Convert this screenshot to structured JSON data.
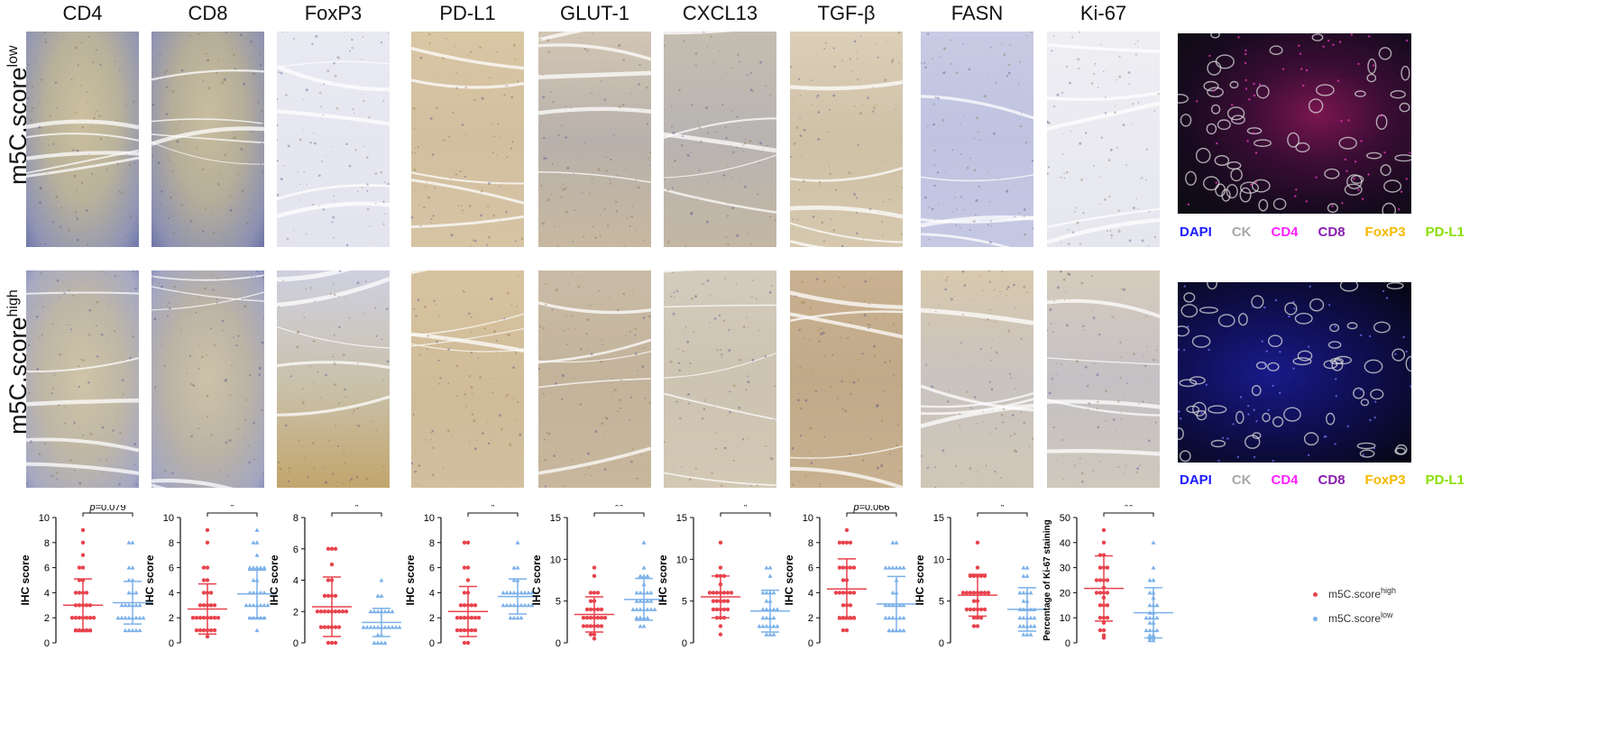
{
  "columns": [
    "CD4",
    "CD8",
    "FoxP3",
    "PD-L1",
    "GLUT-1",
    "CXCL13",
    "TGF-β",
    "FASN",
    "Ki-67"
  ],
  "rows": [
    {
      "base": "m5C.score",
      "sup": "low"
    },
    {
      "base": "m5C.score",
      "sup": "high"
    }
  ],
  "fluor_legend": [
    {
      "label": "DAPI",
      "color": "#1a1aff"
    },
    {
      "label": "CK",
      "color": "#a8a8a8"
    },
    {
      "label": "CD4",
      "color": "#ff22ff"
    },
    {
      "label": "CD8",
      "color": "#8b1fb0"
    },
    {
      "label": "FoxP3",
      "color": "#f5b800"
    },
    {
      "label": "PD-L1",
      "color": "#88e000"
    }
  ],
  "series_legend": [
    {
      "base": "m5C.score",
      "sup": "high",
      "color": "#e8434d"
    },
    {
      "base": "m5C.score",
      "sup": "low",
      "color": "#7ab0ea"
    }
  ],
  "chart_data": [
    {
      "type": "scatter",
      "marker": "CD4",
      "ylabel": "IHC score",
      "ylim": [
        0,
        10
      ],
      "yticks": [
        0,
        2,
        4,
        6,
        8,
        10
      ],
      "annotation": {
        "italic": "p",
        "rest": "=0.079"
      },
      "series": [
        {
          "name": "m5C.score high",
          "mean": 3.0,
          "sd": 2.1,
          "values": [
            9,
            8,
            7,
            6,
            6,
            5,
            5,
            4,
            4,
            4,
            4,
            3,
            3,
            3,
            3,
            3,
            2,
            2,
            2,
            2,
            2,
            2,
            2,
            1,
            1,
            1,
            1,
            1
          ]
        },
        {
          "name": "m5C.score low",
          "mean": 3.2,
          "sd": 1.7,
          "values": [
            8,
            8,
            6,
            6,
            5,
            5,
            4,
            4,
            4,
            3,
            3,
            3,
            3,
            3,
            3,
            2,
            2,
            2,
            2,
            2,
            2,
            2,
            2,
            1,
            1,
            1,
            1,
            1
          ]
        }
      ]
    },
    {
      "type": "scatter",
      "marker": "CD8",
      "ylabel": "IHC score",
      "ylim": [
        0,
        10
      ],
      "yticks": [
        0,
        2,
        4,
        6,
        8,
        10
      ],
      "annotation": {
        "italic": "",
        "rest": "*"
      },
      "series": [
        {
          "name": "m5C.score high",
          "mean": 2.7,
          "sd": 2.0,
          "values": [
            9,
            8,
            6,
            6,
            5,
            5,
            4,
            4,
            4,
            3,
            3,
            3,
            3,
            3,
            2,
            2,
            2,
            2,
            2,
            2,
            2,
            2,
            1,
            1,
            1,
            1,
            1,
            1,
            0.5
          ]
        },
        {
          "name": "m5C.score low",
          "mean": 3.9,
          "sd": 1.9,
          "values": [
            9,
            8,
            8,
            7,
            6,
            6,
            6,
            6,
            6,
            5,
            5,
            4,
            4,
            4,
            4,
            4,
            3,
            3,
            3,
            3,
            3,
            3,
            3,
            2,
            2,
            2,
            2,
            2,
            1
          ]
        }
      ]
    },
    {
      "type": "scatter",
      "marker": "FoxP3",
      "ylabel": "IHC score",
      "ylim": [
        0,
        8
      ],
      "yticks": [
        0,
        2,
        4,
        6,
        8
      ],
      "annotation": {
        "italic": "",
        "rest": "*"
      },
      "series": [
        {
          "name": "m5C.score high",
          "mean": 2.3,
          "sd": 1.9,
          "values": [
            6,
            6,
            6,
            5,
            4,
            4,
            3,
            3,
            3,
            3,
            2,
            2,
            2,
            2,
            2,
            2,
            2,
            2,
            2,
            1,
            1,
            1,
            1,
            1,
            1,
            0,
            0,
            0
          ]
        },
        {
          "name": "m5C.score low",
          "mean": 1.3,
          "sd": 0.9,
          "values": [
            4,
            3,
            3,
            2,
            2,
            2,
            2,
            2,
            2,
            2,
            1,
            1,
            1,
            1,
            1,
            1,
            1,
            1,
            1,
            1,
            1,
            0.5,
            0.5,
            0,
            0,
            0,
            0
          ]
        }
      ]
    },
    {
      "type": "scatter",
      "marker": "PD-L1",
      "ylabel": "IHC score",
      "ylim": [
        0,
        10
      ],
      "yticks": [
        0,
        2,
        4,
        6,
        8,
        10
      ],
      "annotation": {
        "italic": "",
        "rest": "*"
      },
      "series": [
        {
          "name": "m5C.score high",
          "mean": 2.5,
          "sd": 2.0,
          "values": [
            8,
            8,
            6,
            6,
            5,
            4,
            4,
            3,
            3,
            3,
            3,
            3,
            2,
            2,
            2,
            2,
            2,
            2,
            2,
            1,
            1,
            1,
            1,
            1,
            1,
            0,
            0
          ]
        },
        {
          "name": "m5C.score low",
          "mean": 3.7,
          "sd": 1.4,
          "values": [
            8,
            6,
            6,
            5,
            5,
            4,
            4,
            4,
            4,
            4,
            4,
            4,
            4,
            4,
            3,
            3,
            3,
            3,
            3,
            3,
            3,
            3,
            3,
            2,
            2,
            2,
            2
          ]
        }
      ]
    },
    {
      "type": "scatter",
      "marker": "GLUT-1",
      "ylabel": "IHC score",
      "ylim": [
        0,
        15
      ],
      "yticks": [
        0,
        5,
        10,
        15
      ],
      "annotation": {
        "italic": "",
        "rest": "**"
      },
      "series": [
        {
          "name": "m5C.score high",
          "mean": 3.4,
          "sd": 2.1,
          "values": [
            9,
            8,
            6,
            6,
            6,
            5,
            5,
            4,
            4,
            4,
            4,
            4,
            3,
            3,
            3,
            3,
            3,
            3,
            3,
            2,
            2,
            2,
            2,
            2,
            2,
            1,
            1,
            0.5
          ]
        },
        {
          "name": "m5C.score low",
          "mean": 5.2,
          "sd": 2.5,
          "values": [
            12,
            9,
            8,
            8,
            8,
            7,
            6,
            6,
            6,
            6,
            6,
            5,
            5,
            5,
            5,
            5,
            4,
            4,
            4,
            4,
            4,
            4,
            4,
            3,
            3,
            3,
            3,
            2,
            2
          ]
        }
      ]
    },
    {
      "type": "scatter",
      "marker": "CXCL13",
      "ylabel": "IHC score",
      "ylim": [
        0,
        15
      ],
      "yticks": [
        0,
        5,
        10,
        15
      ],
      "annotation": {
        "italic": "",
        "rest": "*"
      },
      "series": [
        {
          "name": "m5C.score high",
          "mean": 5.5,
          "sd": 2.5,
          "values": [
            12,
            9,
            8,
            8,
            8,
            7,
            6,
            6,
            6,
            6,
            6,
            6,
            6,
            5,
            5,
            5,
            5,
            5,
            4,
            4,
            4,
            4,
            4,
            3,
            3,
            3,
            2,
            1
          ]
        },
        {
          "name": "m5C.score low",
          "mean": 3.8,
          "sd": 2.5,
          "values": [
            9,
            9,
            8,
            6,
            6,
            6,
            6,
            5,
            5,
            4,
            4,
            4,
            4,
            4,
            3,
            3,
            3,
            3,
            2,
            2,
            2,
            2,
            2,
            2,
            1,
            1,
            1
          ]
        }
      ]
    },
    {
      "type": "scatter",
      "marker": "TGF-β",
      "ylabel": "IHC score",
      "ylim": [
        0,
        10
      ],
      "yticks": [
        0,
        2,
        4,
        6,
        8,
        10
      ],
      "annotation": {
        "italic": "p",
        "rest": "=0.066"
      },
      "series": [
        {
          "name": "m5C.score high",
          "mean": 4.3,
          "sd": 2.4,
          "values": [
            9,
            8,
            8,
            8,
            8,
            6,
            6,
            6,
            6,
            6,
            5,
            5,
            4,
            4,
            4,
            4,
            4,
            4,
            3,
            3,
            3,
            2,
            2,
            2,
            2,
            2,
            1,
            1
          ]
        },
        {
          "name": "m5C.score low",
          "mean": 3.1,
          "sd": 2.2,
          "values": [
            8,
            8,
            6,
            6,
            6,
            6,
            6,
            6,
            5,
            4,
            4,
            3,
            3,
            3,
            3,
            3,
            3,
            2,
            2,
            2,
            2,
            2,
            2,
            1,
            1,
            1,
            1,
            1
          ]
        }
      ]
    },
    {
      "type": "scatter",
      "marker": "FASN",
      "ylabel": "IHC score",
      "ylim": [
        0,
        15
      ],
      "yticks": [
        0,
        5,
        10,
        15
      ],
      "annotation": {
        "italic": "",
        "rest": "*"
      },
      "series": [
        {
          "name": "m5C.score high",
          "mean": 5.7,
          "sd": 2.5,
          "values": [
            12,
            9,
            8,
            8,
            8,
            8,
            8,
            6,
            6,
            6,
            6,
            6,
            6,
            6,
            6,
            5,
            5,
            4,
            4,
            4,
            4,
            4,
            4,
            3,
            3,
            3,
            2,
            2
          ]
        },
        {
          "name": "m5C.score low",
          "mean": 4.0,
          "sd": 2.6,
          "values": [
            9,
            9,
            8,
            8,
            6,
            6,
            6,
            6,
            5,
            5,
            4,
            4,
            4,
            4,
            4,
            3,
            3,
            3,
            3,
            3,
            2,
            2,
            2,
            2,
            2,
            1,
            1,
            1
          ]
        }
      ]
    },
    {
      "type": "scatter",
      "marker": "Ki-67",
      "ylabel": "Percentage of Ki-67 staining",
      "ylim": [
        0,
        50
      ],
      "yticks": [
        0,
        10,
        20,
        30,
        40,
        50
      ],
      "annotation": {
        "italic": "",
        "rest": "**"
      },
      "series": [
        {
          "name": "m5C.score high",
          "mean": 21.7,
          "sd": 13.0,
          "values": [
            45,
            40,
            35,
            35,
            30,
            30,
            30,
            25,
            25,
            25,
            25,
            22,
            20,
            20,
            20,
            20,
            18,
            15,
            15,
            15,
            10,
            10,
            10,
            8,
            5,
            5,
            3,
            2
          ]
        },
        {
          "name": "m5C.score low",
          "mean": 12.0,
          "sd": 10.0,
          "values": [
            40,
            30,
            25,
            25,
            20,
            20,
            18,
            15,
            15,
            15,
            12,
            12,
            10,
            10,
            10,
            10,
            8,
            8,
            5,
            5,
            5,
            5,
            3,
            3,
            2,
            2,
            1,
            1
          ]
        }
      ]
    }
  ]
}
